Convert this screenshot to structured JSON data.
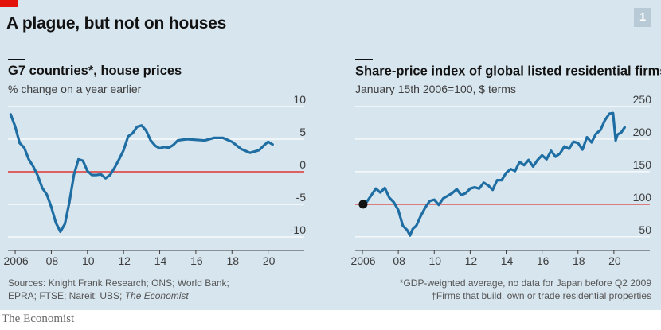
{
  "header": {
    "title": "A plague, but not on houses",
    "badge": "1"
  },
  "left": {
    "title": "G7 countries*, house prices",
    "subtitle": "% change on a year earlier"
  },
  "right": {
    "title": "Share-price index of global listed residential firms",
    "title_mark": "†",
    "subtitle": "January 15th 2006=100, $ terms"
  },
  "notes": {
    "sources_line1": "Sources: Knight Frank Research; ONS; World Bank;",
    "sources_line2": "EPRA; FTSE; Nareit; UBS;",
    "sources_italic": "The Economist",
    "footnote1": "*GDP-weighted average, no data for Japan before Q2 2009",
    "footnote2": "†Firms that build, own or trade residential properties"
  },
  "footer": {
    "brand": "The Economist"
  },
  "colors": {
    "line": "#1f6ea3",
    "zero": "#e3120b",
    "grid": "#ffffff",
    "background": "#d7e5ee",
    "title_tag": "#e3120b"
  },
  "chart_data": [
    {
      "type": "line",
      "title": "G7 countries*, house prices",
      "subtitle": "% change on a year earlier",
      "x_tick_labels": [
        "2006",
        "08",
        "10",
        "12",
        "14",
        "16",
        "18",
        "20"
      ],
      "x_ticks": [
        2006,
        2008,
        2010,
        2012,
        2014,
        2016,
        2018,
        2020
      ],
      "y_tick_labels": [
        "10",
        "5",
        "0",
        "-5",
        "-10"
      ],
      "y_ticks": [
        10,
        5,
        0,
        -5,
        -10
      ],
      "xlim": [
        2005.6,
        2022.0
      ],
      "ylim": [
        -10.0,
        10.0
      ],
      "grid": true,
      "reference_line": 0,
      "series": [
        {
          "x": [
            2005.75,
            2006.0,
            2006.25,
            2006.5,
            2006.75,
            2007.0,
            2007.25,
            2007.5,
            2007.75,
            2008.0,
            2008.25,
            2008.5,
            2008.75,
            2009.0,
            2009.25,
            2009.5,
            2009.75,
            2010.0,
            2010.25,
            2010.5,
            2010.75,
            2011.0,
            2011.25,
            2011.5,
            2011.75,
            2012.0,
            2012.25,
            2012.5,
            2012.75,
            2013.0,
            2013.25,
            2013.5,
            2013.75,
            2014.0,
            2014.25,
            2014.5,
            2014.75,
            2015.0,
            2015.5,
            2016.0,
            2016.5,
            2017.0,
            2017.5,
            2018.0,
            2018.5,
            2019.0,
            2019.25,
            2019.5,
            2019.75,
            2020.0,
            2020.25
          ],
          "y": [
            8.8,
            6.9,
            4.4,
            3.7,
            1.9,
            0.8,
            -0.6,
            -2.5,
            -3.5,
            -5.4,
            -7.8,
            -9.2,
            -8.0,
            -4.7,
            -0.5,
            1.9,
            1.7,
            0.1,
            -0.5,
            -0.5,
            -0.4,
            -1.0,
            -0.5,
            0.6,
            1.9,
            3.3,
            5.4,
            5.9,
            6.9,
            7.1,
            6.3,
            4.8,
            4.0,
            3.6,
            3.8,
            3.7,
            4.1,
            4.8,
            5.0,
            4.9,
            4.8,
            5.2,
            5.2,
            4.6,
            3.5,
            2.9,
            3.1,
            3.3,
            4.0,
            4.6,
            4.2
          ]
        }
      ]
    },
    {
      "type": "line",
      "title": "Share-price index of global listed residential firms†",
      "subtitle": "January 15th 2006=100, $ terms",
      "x_tick_labels": [
        "2006",
        "08",
        "10",
        "12",
        "14",
        "16",
        "18",
        "20"
      ],
      "x_ticks": [
        2006,
        2008,
        2010,
        2012,
        2014,
        2016,
        2018,
        2020
      ],
      "y_tick_labels": [
        "250",
        "200",
        "150",
        "100",
        "50"
      ],
      "y_ticks": [
        250,
        200,
        150,
        100,
        50
      ],
      "xlim": [
        2005.6,
        2022.0
      ],
      "ylim": [
        40,
        250
      ],
      "grid": true,
      "reference_line": 100,
      "series": [
        {
          "x": [
            2006.04,
            2006.25,
            2006.5,
            2006.75,
            2007.0,
            2007.25,
            2007.5,
            2007.75,
            2008.0,
            2008.25,
            2008.5,
            2008.65,
            2008.8,
            2009.0,
            2009.25,
            2009.5,
            2009.75,
            2010.0,
            2010.25,
            2010.5,
            2010.75,
            2011.0,
            2011.25,
            2011.5,
            2011.75,
            2012.0,
            2012.25,
            2012.5,
            2012.75,
            2013.0,
            2013.25,
            2013.5,
            2013.75,
            2014.0,
            2014.25,
            2014.5,
            2014.75,
            2015.0,
            2015.25,
            2015.5,
            2015.75,
            2016.0,
            2016.25,
            2016.5,
            2016.75,
            2017.0,
            2017.25,
            2017.5,
            2017.75,
            2018.0,
            2018.25,
            2018.5,
            2018.75,
            2019.0,
            2019.25,
            2019.5,
            2019.75,
            2019.95,
            2020.1,
            2020.2,
            2020.4,
            2020.6
          ],
          "y": [
            100,
            104,
            114,
            124,
            118,
            125,
            110,
            103,
            91,
            67,
            60,
            52,
            62,
            67,
            82,
            95,
            105,
            107,
            99,
            109,
            113,
            117,
            123,
            114,
            117,
            124,
            126,
            124,
            133,
            129,
            122,
            137,
            137,
            148,
            154,
            151,
            165,
            160,
            168,
            158,
            168,
            175,
            169,
            182,
            173,
            178,
            189,
            185,
            196,
            194,
            184,
            203,
            195,
            208,
            214,
            229,
            239,
            240,
            198,
            207,
            210,
            218
          ]
        }
      ]
    }
  ]
}
